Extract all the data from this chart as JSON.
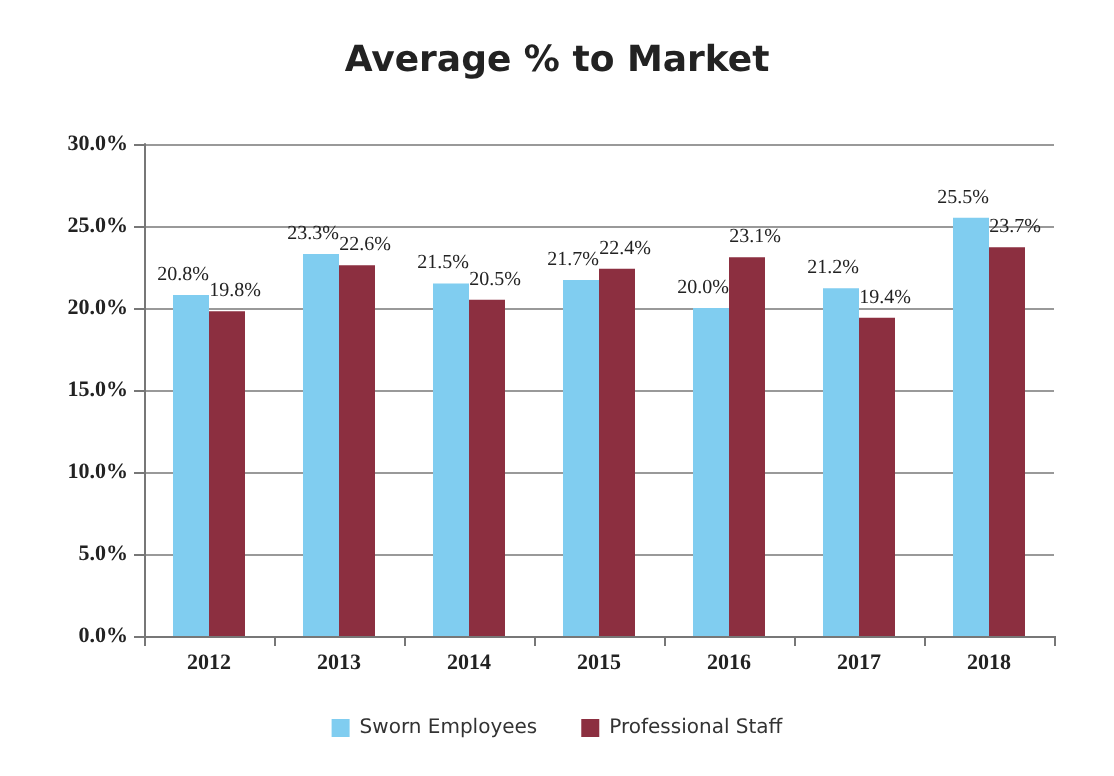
{
  "chart_data": {
    "type": "bar",
    "title": "Average % to Market",
    "categories": [
      "2012",
      "2013",
      "2014",
      "2015",
      "2016",
      "2017",
      "2018"
    ],
    "series": [
      {
        "name": "Sworn Employees",
        "color": "#80cdf0",
        "values": [
          20.8,
          23.3,
          21.5,
          21.7,
          20.0,
          21.2,
          25.5
        ],
        "value_labels": [
          "20.8%",
          "23.3%",
          "21.5%",
          "21.7%",
          "20.0%",
          "21.2%",
          "25.5%"
        ]
      },
      {
        "name": "Professional Staff",
        "color": "#8c2f40",
        "values": [
          19.8,
          22.6,
          20.5,
          22.4,
          23.1,
          19.4,
          23.7
        ],
        "value_labels": [
          "19.8%",
          "22.6%",
          "20.5%",
          "22.4%",
          "23.1%",
          "19.4%",
          "23.7%"
        ]
      }
    ],
    "ylim": [
      0,
      30
    ],
    "yticks": [
      {
        "value": 0,
        "label": "0.0%"
      },
      {
        "value": 5,
        "label": "5.0%"
      },
      {
        "value": 10,
        "label": "10.0%"
      },
      {
        "value": 15,
        "label": "15.0%"
      },
      {
        "value": 20,
        "label": "20.0%"
      },
      {
        "value": 25,
        "label": "25.0%"
      },
      {
        "value": 30,
        "label": "30.0%"
      }
    ],
    "grid": "y",
    "legend": "bottom"
  }
}
